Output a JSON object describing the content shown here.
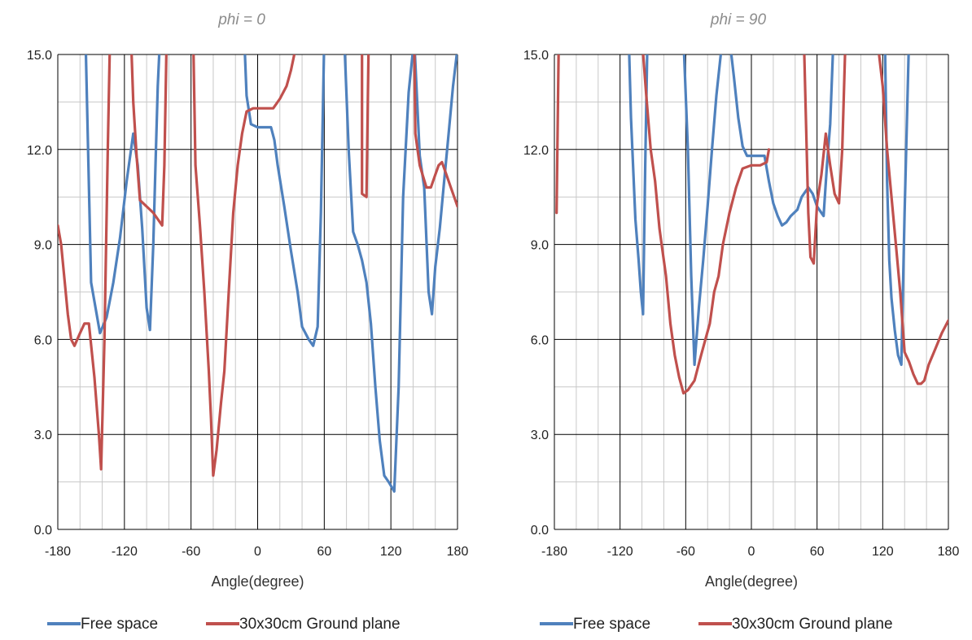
{
  "colors": {
    "free_space": "#4F81BD",
    "ground_plane": "#C0504D"
  },
  "chart_data": [
    {
      "type": "line",
      "title": "phi = 0",
      "xlabel": "Angle(degree)",
      "ylabel": "",
      "xlim": [
        -180,
        180
      ],
      "ylim": [
        0,
        15
      ],
      "xticks": [
        -180,
        -120,
        -60,
        0,
        60,
        120,
        180
      ],
      "yticks": [
        "0.0",
        "3.0",
        "6.0",
        "9.0",
        "12.0",
        "15.0"
      ],
      "grid": true,
      "legend": "bottom",
      "series": [
        {
          "name": "Free space",
          "color": "#4F81BD",
          "points": [
            [
              -155,
              15.5
            ],
            [
              -150,
              7.8
            ],
            [
              -142,
              6.2
            ],
            [
              -136,
              6.7
            ],
            [
              -130,
              7.8
            ],
            [
              -124,
              9.2
            ],
            [
              -118,
              11.0
            ],
            [
              -112,
              12.5
            ],
            [
              -108,
              11.5
            ],
            [
              -104,
              9.5
            ],
            [
              -100,
              7.0
            ],
            [
              -97,
              6.3
            ],
            [
              -94,
              9.0
            ],
            [
              -92,
              11.5
            ],
            [
              -90,
              14.0
            ],
            [
              -88,
              15.5
            ],
            null,
            [
              -12,
              15.5
            ],
            [
              -10,
              13.7
            ],
            [
              -6,
              12.8
            ],
            [
              0,
              12.7
            ],
            [
              6,
              12.7
            ],
            [
              12,
              12.7
            ],
            [
              15,
              12.3
            ],
            [
              18,
              11.5
            ],
            [
              24,
              10.2
            ],
            [
              30,
              8.8
            ],
            [
              36,
              7.5
            ],
            [
              40,
              6.4
            ],
            [
              46,
              6.0
            ],
            [
              50,
              5.8
            ],
            [
              54,
              6.4
            ],
            [
              57,
              10.0
            ],
            [
              60,
              15.5
            ],
            null,
            [
              78,
              15.5
            ],
            [
              82,
              12.0
            ],
            [
              86,
              9.4
            ],
            [
              90,
              9.0
            ],
            [
              94,
              8.5
            ],
            [
              98,
              7.8
            ],
            [
              102,
              6.5
            ],
            [
              106,
              4.5
            ],
            [
              110,
              2.8
            ],
            [
              114,
              1.7
            ],
            [
              118,
              1.5
            ],
            [
              123,
              1.2
            ],
            [
              127,
              4.5
            ],
            [
              131,
              10.5
            ],
            [
              136,
              13.8
            ],
            [
              141,
              15.5
            ],
            [
              146,
              11.8
            ],
            [
              150,
              10.8
            ],
            [
              154,
              7.5
            ],
            [
              157,
              6.8
            ],
            [
              160,
              8.3
            ],
            [
              164,
              9.5
            ],
            [
              168,
              11.0
            ],
            [
              172,
              12.5
            ],
            [
              176,
              14.0
            ],
            [
              180,
              15.2
            ]
          ]
        },
        {
          "name": "30x30cm Ground plane",
          "color": "#C0504D",
          "points": [
            [
              -180,
              9.6
            ],
            [
              -177,
              9.0
            ],
            [
              -174,
              7.9
            ],
            [
              -171,
              6.8
            ],
            [
              -168,
              6.0
            ],
            [
              -165,
              5.8
            ],
            [
              -160,
              6.2
            ],
            [
              -156,
              6.5
            ],
            [
              -152,
              6.5
            ],
            [
              -147,
              4.8
            ],
            [
              -143,
              3.0
            ],
            [
              -141,
              1.9
            ],
            [
              -138,
              6.0
            ],
            [
              -135,
              12.0
            ],
            [
              -133,
              15.5
            ],
            null,
            [
              -114,
              15.5
            ],
            [
              -112,
              13.5
            ],
            [
              -109,
              11.8
            ],
            [
              -106,
              10.4
            ],
            [
              -100,
              10.2
            ],
            [
              -94,
              10.0
            ],
            [
              -90,
              9.8
            ],
            [
              -86,
              9.6
            ],
            [
              -84,
              11.5
            ],
            [
              -82,
              15.5
            ],
            null,
            [
              -58,
              15.5
            ],
            [
              -56,
              11.5
            ],
            [
              -52,
              9.6
            ],
            [
              -48,
              7.5
            ],
            [
              -44,
              5.0
            ],
            [
              -42,
              3.5
            ],
            [
              -40,
              1.7
            ],
            [
              -37,
              2.5
            ],
            [
              -33,
              4.0
            ],
            [
              -30,
              5.0
            ],
            [
              -26,
              7.5
            ],
            [
              -22,
              10.0
            ],
            [
              -18,
              11.5
            ],
            [
              -14,
              12.5
            ],
            [
              -10,
              13.2
            ],
            [
              -4,
              13.3
            ],
            [
              6,
              13.3
            ],
            [
              14,
              13.3
            ],
            [
              20,
              13.6
            ],
            [
              26,
              14.0
            ],
            [
              30,
              14.5
            ],
            [
              33,
              15.0
            ],
            [
              35,
              15.5
            ],
            null,
            [
              94,
              15.5
            ],
            [
              94,
              10.6
            ],
            [
              98,
              10.5
            ],
            [
              100,
              15.5
            ],
            null,
            [
              141,
              15.5
            ],
            [
              142,
              12.5
            ],
            [
              146,
              11.5
            ],
            [
              152,
              10.8
            ],
            [
              156,
              10.8
            ],
            [
              160,
              11.2
            ],
            [
              163,
              11.5
            ],
            [
              166,
              11.6
            ],
            [
              170,
              11.2
            ],
            [
              174,
              10.8
            ],
            [
              178,
              10.4
            ],
            [
              180,
              10.2
            ]
          ]
        }
      ]
    },
    {
      "type": "line",
      "title": "phi = 90",
      "xlabel": "Angle(degree)",
      "ylabel": "",
      "xlim": [
        -180,
        180
      ],
      "ylim": [
        0,
        15
      ],
      "xticks": [
        -180,
        -120,
        -60,
        0,
        60,
        120,
        180
      ],
      "yticks": [
        "0.0",
        "3.0",
        "6.0",
        "9.0",
        "12.0",
        "15.0"
      ],
      "grid": true,
      "legend": "bottom",
      "series": [
        {
          "name": "Free space",
          "color": "#4F81BD",
          "points": [
            [
              -112,
              15.5
            ],
            [
              -110,
              13.0
            ],
            [
              -106,
              9.8
            ],
            [
              -103,
              8.5
            ],
            [
              -101,
              7.5
            ],
            [
              -99,
              6.8
            ],
            [
              -97,
              11.5
            ],
            [
              -95,
              15.5
            ],
            null,
            [
              -62,
              15.5
            ],
            [
              -58,
              12.0
            ],
            [
              -55,
              8.0
            ],
            [
              -52,
              5.2
            ],
            [
              -48,
              7.0
            ],
            [
              -44,
              8.5
            ],
            [
              -40,
              10.2
            ],
            [
              -36,
              12.0
            ],
            [
              -32,
              13.7
            ],
            [
              -28,
              15.0
            ],
            [
              -26,
              15.5
            ],
            null,
            [
              -20,
              15.5
            ],
            [
              -16,
              14.3
            ],
            [
              -12,
              13.0
            ],
            [
              -8,
              12.1
            ],
            [
              -4,
              11.8
            ],
            [
              4,
              11.8
            ],
            [
              12,
              11.8
            ],
            [
              16,
              11.0
            ],
            [
              20,
              10.3
            ],
            [
              24,
              9.9
            ],
            [
              28,
              9.6
            ],
            [
              32,
              9.7
            ],
            [
              36,
              9.9
            ],
            [
              42,
              10.1
            ],
            [
              46,
              10.5
            ],
            [
              52,
              10.8
            ],
            [
              56,
              10.6
            ],
            [
              60,
              10.2
            ],
            [
              64,
              10.0
            ],
            [
              66,
              9.9
            ],
            [
              69,
              11.5
            ],
            [
              72,
              12.8
            ],
            [
              75,
              15.5
            ],
            null,
            [
              122,
              15.5
            ],
            [
              124,
              11.0
            ],
            [
              126,
              8.5
            ],
            [
              128,
              7.3
            ],
            [
              131,
              6.3
            ],
            [
              134,
              5.5
            ],
            [
              137,
              5.2
            ],
            [
              140,
              10.0
            ],
            [
              144,
              15.5
            ]
          ]
        },
        {
          "name": "30x30cm Ground plane",
          "color": "#C0504D",
          "points": [
            [
              -178,
              10.0
            ],
            [
              -176,
              15.5
            ],
            null,
            [
              -100,
              15.5
            ],
            [
              -96,
              13.7
            ],
            [
              -92,
              12.0
            ],
            [
              -88,
              11.0
            ],
            [
              -84,
              9.5
            ],
            [
              -78,
              8.0
            ],
            [
              -74,
              6.5
            ],
            [
              -70,
              5.5
            ],
            [
              -66,
              4.8
            ],
            [
              -62,
              4.3
            ],
            [
              -58,
              4.4
            ],
            [
              -52,
              4.7
            ],
            [
              -46,
              5.5
            ],
            [
              -42,
              6.0
            ],
            [
              -38,
              6.5
            ],
            [
              -34,
              7.5
            ],
            [
              -30,
              8.0
            ],
            [
              -26,
              9.0
            ],
            [
              -20,
              10.0
            ],
            [
              -14,
              10.8
            ],
            [
              -8,
              11.4
            ],
            [
              0,
              11.5
            ],
            [
              8,
              11.5
            ],
            [
              14,
              11.6
            ],
            [
              16,
              12.0
            ],
            null,
            [
              48,
              15.5
            ],
            [
              52,
              10.0
            ],
            [
              54,
              8.6
            ],
            [
              57,
              8.4
            ],
            [
              60,
              10.3
            ],
            [
              64,
              11.2
            ],
            [
              68,
              12.5
            ],
            [
              72,
              11.5
            ],
            [
              76,
              10.6
            ],
            [
              80,
              10.3
            ],
            [
              83,
              12.0
            ],
            [
              86,
              15.5
            ],
            null,
            [
              115,
              15.5
            ],
            [
              120,
              14.0
            ],
            [
              124,
              12.0
            ],
            [
              128,
              10.5
            ],
            [
              132,
              9.0
            ],
            [
              136,
              7.5
            ],
            [
              140,
              5.6
            ],
            [
              144,
              5.3
            ],
            [
              148,
              4.9
            ],
            [
              152,
              4.6
            ],
            [
              155,
              4.6
            ],
            [
              158,
              4.7
            ],
            [
              162,
              5.2
            ],
            [
              168,
              5.7
            ],
            [
              174,
              6.2
            ],
            [
              180,
              6.6
            ]
          ]
        }
      ]
    }
  ]
}
